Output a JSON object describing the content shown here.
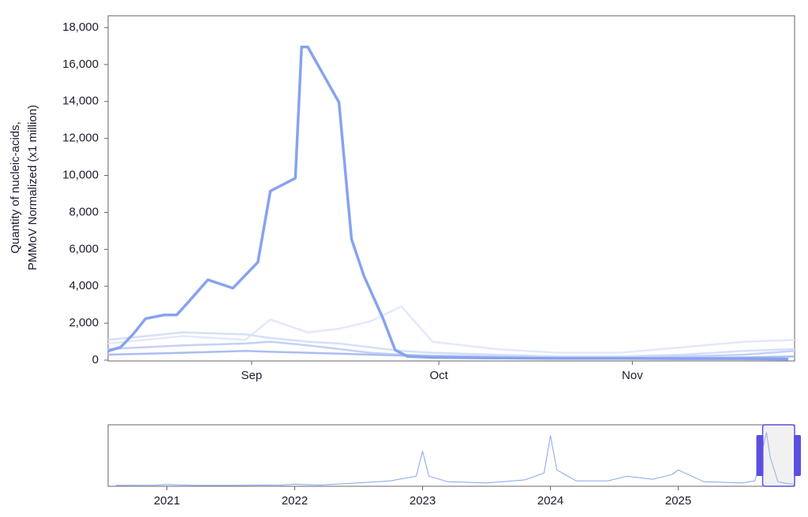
{
  "chart_data": [
    {
      "type": "line",
      "y_label": "Quantity of nucleic-acids,",
      "y_label_2": "PMMoV Normalized (x1 million)",
      "xlim": [
        8,
        118
      ],
      "xticks": [
        {
          "value": 31,
          "label": "Sep"
        },
        {
          "value": 61,
          "label": "Oct"
        },
        {
          "value": 92,
          "label": "Nov"
        }
      ],
      "ylim": [
        0,
        18000
      ],
      "yticks": [
        0,
        {
          "value": 2000,
          "label": "2,000"
        },
        {
          "value": 4000,
          "label": "4,000"
        },
        {
          "value": 6000,
          "label": "6,000"
        },
        {
          "value": 8000,
          "label": "8,000"
        },
        {
          "value": 10000,
          "label": "10,000"
        },
        {
          "value": 12000,
          "label": "12,000"
        },
        {
          "value": 14000,
          "label": "14,000"
        },
        {
          "value": 16000,
          "label": "16,000"
        },
        {
          "value": 18000,
          "label": "18,000"
        }
      ],
      "series": [
        {
          "color": "#e3e9fb",
          "width": 2.5,
          "x": [
            8,
            20,
            30,
            34,
            40,
            45,
            50,
            55,
            60,
            70,
            80,
            90,
            100,
            110,
            118
          ],
          "values": [
            900,
            1300,
            1100,
            2200,
            1500,
            1700,
            2100,
            2900,
            1000,
            600,
            400,
            400,
            700,
            1000,
            1100
          ]
        },
        {
          "color": "#d6dff9",
          "width": 2.5,
          "x": [
            8,
            20,
            30,
            34,
            40,
            45,
            50,
            55,
            60,
            70,
            80,
            90,
            100,
            110,
            118
          ],
          "values": [
            1100,
            1500,
            1400,
            1200,
            1000,
            900,
            700,
            500,
            400,
            300,
            200,
            200,
            300,
            500,
            600
          ]
        },
        {
          "color": "#c3d1f6",
          "width": 2.5,
          "x": [
            8,
            20,
            30,
            34,
            40,
            45,
            50,
            55,
            60,
            70,
            80,
            90,
            100,
            110,
            118
          ],
          "values": [
            600,
            800,
            900,
            1000,
            800,
            600,
            400,
            300,
            250,
            200,
            150,
            150,
            200,
            300,
            500
          ]
        },
        {
          "color": "#a9bdf2",
          "width": 2.5,
          "x": [
            8,
            20,
            30,
            34,
            40,
            45,
            50,
            55,
            60,
            70,
            80,
            90,
            100,
            110,
            118
          ],
          "values": [
            300,
            400,
            500,
            450,
            400,
            350,
            300,
            250,
            200,
            150,
            100,
            100,
            120,
            150,
            200
          ]
        },
        {
          "color": "#86a3ee",
          "width": 3.5,
          "x": [
            8,
            10,
            12,
            14,
            17,
            19,
            21,
            24,
            28,
            32,
            34,
            38,
            39,
            40,
            45,
            47,
            49,
            52,
            54,
            56,
            60,
            70,
            80,
            90,
            100,
            110,
            117
          ],
          "values": [
            500,
            700,
            1400,
            2250,
            2450,
            2450,
            3200,
            4350,
            3900,
            5300,
            9150,
            9850,
            16950,
            16950,
            13950,
            6550,
            4550,
            2300,
            550,
            200,
            150,
            120,
            100,
            100,
            80,
            80,
            60
          ]
        }
      ]
    },
    {
      "type": "line",
      "xlim": [
        2020.54,
        2025.91
      ],
      "xticks": [
        2021,
        2022,
        2023,
        2024,
        2025
      ],
      "ylim": [
        0,
        19000
      ],
      "brush": [
        2025.66,
        2025.91
      ],
      "series": [
        {
          "color": "#86a3ee",
          "width": 1,
          "x": [
            2020.6,
            2020.9,
            2021.0,
            2021.2,
            2021.5,
            2021.9,
            2022.0,
            2022.2,
            2022.5,
            2022.75,
            2022.95,
            2023.0,
            2023.05,
            2023.2,
            2023.5,
            2023.8,
            2023.95,
            2024.0,
            2024.05,
            2024.2,
            2024.45,
            2024.6,
            2024.8,
            2024.95,
            2025.0,
            2025.2,
            2025.5,
            2025.6,
            2025.69,
            2025.72,
            2025.78,
            2025.85,
            2025.9
          ],
          "values": [
            50,
            100,
            300,
            80,
            50,
            150,
            400,
            150,
            800,
            1500,
            3000,
            11000,
            3000,
            1200,
            800,
            1800,
            4000,
            16000,
            5000,
            1500,
            1500,
            3000,
            2000,
            3500,
            5000,
            1200,
            800,
            1500,
            17000,
            9000,
            1200,
            600,
            500
          ]
        }
      ]
    }
  ]
}
